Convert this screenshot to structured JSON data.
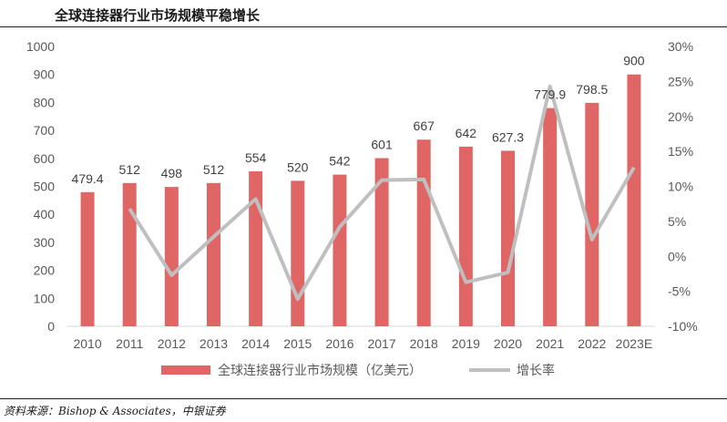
{
  "header": {
    "title": "全球连接器行业市场规模平稳增长"
  },
  "footer": {
    "source": "资料来源：Bishop & Associates，中银证券"
  },
  "chart_data": {
    "type": "bar",
    "categories": [
      "2010",
      "2011",
      "2012",
      "2013",
      "2014",
      "2015",
      "2016",
      "2017",
      "2018",
      "2019",
      "2020",
      "2021",
      "2022",
      "2023E"
    ],
    "series": [
      {
        "name": "全球连接器行业市场规模（亿美元）",
        "type": "bar",
        "axis": "left",
        "color": "#E06666",
        "values": [
          479.4,
          512,
          498,
          512,
          554,
          520,
          542,
          601,
          667,
          642,
          627.3,
          779.9,
          798.5,
          900
        ],
        "labels": [
          "479.4",
          "512",
          "498",
          "512",
          "554",
          "520",
          "542",
          "601",
          "667",
          "642",
          "627.3",
          "779.9",
          "798.5",
          "900"
        ]
      },
      {
        "name": "增长率",
        "type": "line",
        "axis": "right",
        "color": "#BFBFBF",
        "values": [
          null,
          6.8,
          -2.7,
          2.8,
          8.2,
          -6.1,
          4.2,
          10.9,
          11.0,
          -3.7,
          -2.3,
          24.3,
          2.4,
          12.7
        ]
      }
    ],
    "y_left": {
      "ylim": [
        0,
        1000
      ],
      "ticks": [
        0,
        100,
        200,
        300,
        400,
        500,
        600,
        700,
        800,
        900,
        1000
      ]
    },
    "y_right": {
      "ylim": [
        -10,
        30
      ],
      "ticks": [
        "-10%",
        "-5%",
        "0%",
        "5%",
        "10%",
        "15%",
        "20%",
        "25%",
        "30%"
      ]
    },
    "grid": false,
    "legend": "bottom"
  }
}
